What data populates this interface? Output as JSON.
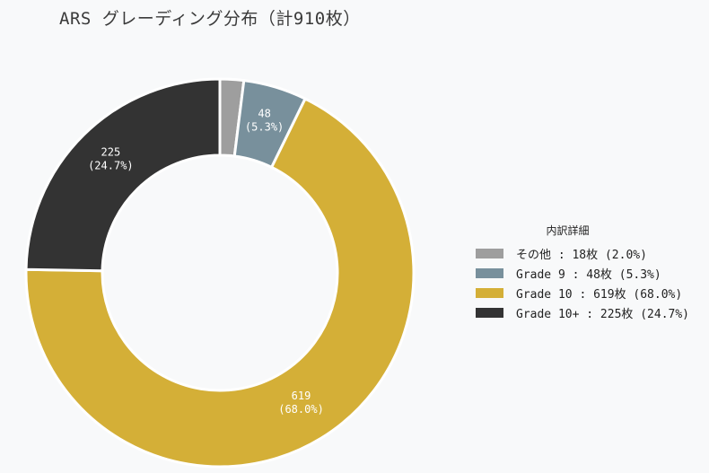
{
  "title": "ARS グレーディング分布（計910枚）",
  "chart_data": {
    "type": "pie",
    "donut": true,
    "title": "ARS グレーディング分布（計910枚）",
    "total": 910,
    "slices": [
      {
        "label": "その他",
        "value": 18,
        "percent": "2.0%",
        "color": "#9e9e9e",
        "data_label": "",
        "pct_label": ""
      },
      {
        "label": "Grade 9",
        "value": 48,
        "percent": "5.3%",
        "color": "#78909c",
        "data_label": "48",
        "pct_label": "(5.3%)"
      },
      {
        "label": "Grade 10",
        "value": 619,
        "percent": "68.0%",
        "color": "#d4af37",
        "data_label": "619",
        "pct_label": "(68.0%)"
      },
      {
        "label": "Grade 10+",
        "value": 225,
        "percent": "24.7%",
        "color": "#333333",
        "data_label": "225",
        "pct_label": "(24.7%)"
      }
    ],
    "legend_title": "内訳詳細",
    "legend_position": "right"
  },
  "legend": {
    "title": "内訳詳細",
    "items": [
      "その他 : 18枚 (2.0%)",
      "Grade 9 : 48枚 (5.3%)",
      "Grade 10 : 619枚 (68.0%)",
      "Grade 10+ : 225枚 (24.7%)"
    ]
  }
}
